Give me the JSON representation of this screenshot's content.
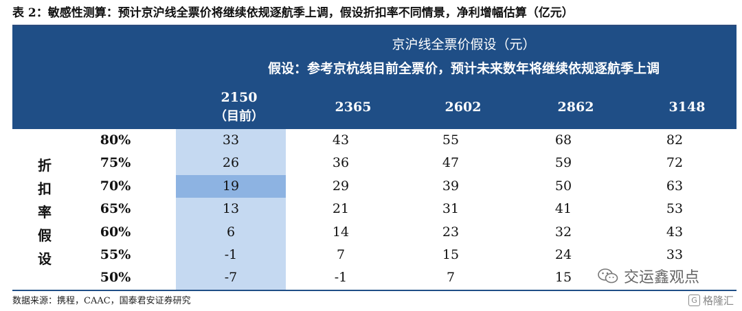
{
  "title": "表 2：敏感性测算：预计京沪线全票价将继续依规逐航季上调，假设折扣率不同情景，净利增幅估算（亿元）",
  "header": {
    "line1": "京沪线全票价假设（元）",
    "line2": "假设：参考京杭线目前全票价，预计未来数年将继续依规逐航季上调",
    "columns": [
      {
        "price": "2150",
        "note": "（目前）"
      },
      {
        "price": "2365",
        "note": ""
      },
      {
        "price": "2602",
        "note": ""
      },
      {
        "price": "2862",
        "note": ""
      },
      {
        "price": "3148",
        "note": ""
      }
    ]
  },
  "row_label_chars": [
    "折",
    "扣",
    "率",
    "假",
    "设"
  ],
  "rows": [
    {
      "rate": "80%",
      "values": [
        "33",
        "43",
        "55",
        "68",
        "82"
      ]
    },
    {
      "rate": "75%",
      "values": [
        "26",
        "36",
        "47",
        "59",
        "72"
      ]
    },
    {
      "rate": "70%",
      "values": [
        "19",
        "29",
        "39",
        "50",
        "63"
      ]
    },
    {
      "rate": "65%",
      "values": [
        "13",
        "21",
        "31",
        "41",
        "53"
      ]
    },
    {
      "rate": "60%",
      "values": [
        "6",
        "14",
        "23",
        "32",
        "43"
      ]
    },
    {
      "rate": "55%",
      "values": [
        "-1",
        "7",
        "15",
        "24",
        "33"
      ]
    },
    {
      "rate": "50%",
      "values": [
        "-7",
        "-1",
        "7",
        "15",
        ""
      ]
    }
  ],
  "highlight_row_index": 2,
  "source": "数据来源：携程，CAAC，国泰君安证券研究",
  "watermark_primary": "交运鑫观点",
  "watermark_secondary": "格隆汇",
  "watermark_secondary_badge": "G",
  "colors": {
    "header_bg": "#1f4e86",
    "current_column_bg": "#c5d9f1",
    "highlight_cell_bg": "#8db3e2"
  }
}
